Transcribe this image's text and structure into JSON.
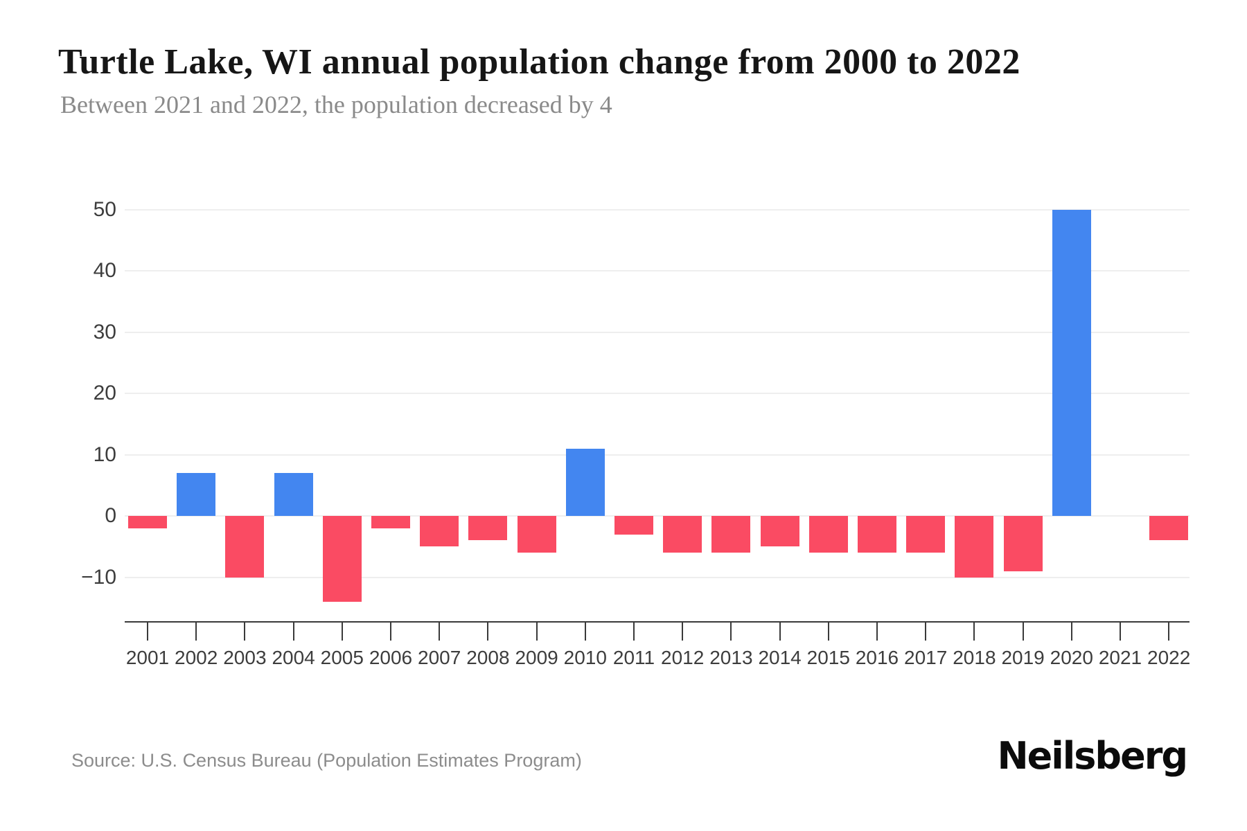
{
  "header": {
    "title": "Turtle Lake, WI annual population change from 2000 to 2022",
    "subtitle": "Between 2021 and 2022, the population decreased by 4"
  },
  "footer": {
    "source": "Source: U.S. Census Bureau (Population Estimates Program)",
    "brand": "Neilsberg"
  },
  "chart_data": {
    "type": "bar",
    "title": "Turtle Lake, WI annual population change from 2000 to 2022",
    "subtitle": "Between 2021 and 2022, the population decreased by 4",
    "categories": [
      "2001",
      "2002",
      "2003",
      "2004",
      "2005",
      "2006",
      "2007",
      "2008",
      "2009",
      "2010",
      "2011",
      "2012",
      "2013",
      "2014",
      "2015",
      "2016",
      "2017",
      "2018",
      "2019",
      "2020",
      "2021",
      "2022"
    ],
    "values": [
      -2,
      7,
      -10,
      7,
      -14,
      -2,
      -5,
      -4,
      -6,
      11,
      -3,
      -6,
      -6,
      -5,
      -6,
      -6,
      -6,
      -10,
      -9,
      50,
      0,
      -4
    ],
    "xlabel": "",
    "ylabel": "",
    "yticks": [
      50,
      40,
      30,
      20,
      10,
      0,
      -10
    ],
    "ytick_labels": [
      "50",
      "40",
      "30",
      "20",
      "10",
      "0",
      "−10"
    ],
    "ylim": [
      -17,
      55
    ],
    "grid": true,
    "legend": false,
    "colors": {
      "positive_bar": "#4386F0",
      "negative_bar": "#FA4B63",
      "gridline": "#EEEEEE",
      "axis": "#3a3a3a",
      "tick_label": "#3d3d3d"
    }
  }
}
